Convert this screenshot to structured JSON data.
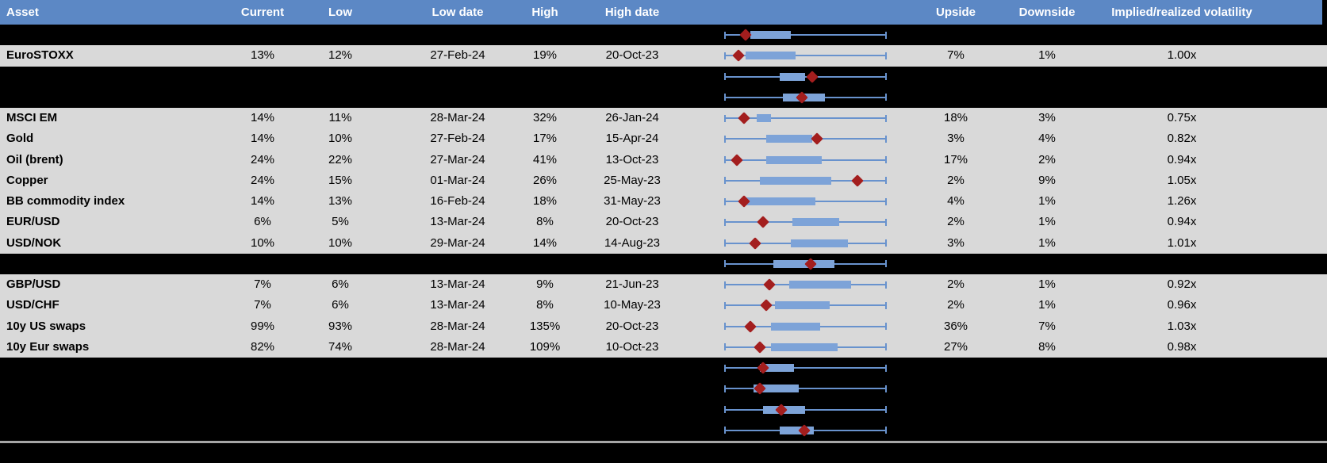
{
  "colors": {
    "header-bg": "#5c88c5",
    "header-text": "#ffffff",
    "row-bg": "#d9d9d9",
    "spacer-bg": "#000000",
    "box-fill": "#7da3d8",
    "whisker": "#6892cd",
    "marker": "#a31e1e",
    "divider": "#a6a6a6"
  },
  "chart_data": {
    "type": "table",
    "columns": [
      "Asset",
      "Current",
      "Low",
      "Low date",
      "High",
      "High date",
      "",
      "Upside",
      "Downside",
      "Implied/realized volatility"
    ],
    "range_plot_note": "Each row has a box-and-whisker range plot with a dark-red diamond marker; box and marker values are normalized where 0 = left whisker end and 1 = right whisker end",
    "rows": [
      {
        "kind": "spacer",
        "box": [
          0.16,
          0.41
        ],
        "marker": 0.13
      },
      {
        "kind": "data",
        "asset": "EuroSTOXX",
        "current": "13%",
        "low": "12%",
        "low_date": "27-Feb-24",
        "high": "19%",
        "high_date": "20-Oct-23",
        "upside": "7%",
        "downside": "1%",
        "implied_realized": "1.00x",
        "box": [
          0.13,
          0.44
        ],
        "marker": 0.09
      },
      {
        "kind": "spacer",
        "box": [
          0.34,
          0.5
        ],
        "marker": 0.54
      },
      {
        "kind": "spacer",
        "box": [
          0.36,
          0.62
        ],
        "marker": 0.48
      },
      {
        "kind": "data",
        "asset": "MSCI EM",
        "current": "14%",
        "low": "11%",
        "low_date": "28-Mar-24",
        "high": "32%",
        "high_date": "26-Jan-24",
        "upside": "18%",
        "downside": "3%",
        "implied_realized": "0.75x",
        "box": [
          0.2,
          0.29
        ],
        "marker": 0.12
      },
      {
        "kind": "data",
        "asset": "Gold",
        "current": "14%",
        "low": "10%",
        "low_date": "27-Feb-24",
        "high": "17%",
        "high_date": "15-Apr-24",
        "upside": "3%",
        "downside": "4%",
        "implied_realized": "0.82x",
        "box": [
          0.26,
          0.54
        ],
        "marker": 0.57
      },
      {
        "kind": "data",
        "asset": "Oil (brent)",
        "current": "24%",
        "low": "22%",
        "low_date": "27-Mar-24",
        "high": "41%",
        "high_date": "13-Oct-23",
        "upside": "17%",
        "downside": "2%",
        "implied_realized": "0.94x",
        "box": [
          0.26,
          0.6
        ],
        "marker": 0.08
      },
      {
        "kind": "data",
        "asset": "Copper",
        "current": "24%",
        "low": "15%",
        "low_date": "01-Mar-24",
        "high": "26%",
        "high_date": "25-May-23",
        "upside": "2%",
        "downside": "9%",
        "implied_realized": "1.05x",
        "box": [
          0.22,
          0.66
        ],
        "marker": 0.82
      },
      {
        "kind": "data",
        "asset": "BB commodity index",
        "current": "14%",
        "low": "13%",
        "low_date": "16-Feb-24",
        "high": "18%",
        "high_date": "31-May-23",
        "upside": "4%",
        "downside": "1%",
        "implied_realized": "1.26x",
        "box": [
          0.12,
          0.56
        ],
        "marker": 0.12
      },
      {
        "kind": "data",
        "asset": "EUR/USD",
        "current": "6%",
        "low": "5%",
        "low_date": "13-Mar-24",
        "high": "8%",
        "high_date": "20-Oct-23",
        "upside": "2%",
        "downside": "1%",
        "implied_realized": "0.94x",
        "box": [
          0.42,
          0.71
        ],
        "marker": 0.24
      },
      {
        "kind": "data",
        "asset": "USD/NOK",
        "current": "10%",
        "low": "10%",
        "low_date": "29-Mar-24",
        "high": "14%",
        "high_date": "14-Aug-23",
        "upside": "3%",
        "downside": "1%",
        "implied_realized": "1.01x",
        "box": [
          0.41,
          0.76
        ],
        "marker": 0.19
      },
      {
        "kind": "spacer",
        "box": [
          0.3,
          0.68
        ],
        "marker": 0.53
      },
      {
        "kind": "data",
        "asset": "GBP/USD",
        "current": "7%",
        "low": "6%",
        "low_date": "13-Mar-24",
        "high": "9%",
        "high_date": "21-Jun-23",
        "upside": "2%",
        "downside": "1%",
        "implied_realized": "0.92x",
        "box": [
          0.4,
          0.78
        ],
        "marker": 0.28
      },
      {
        "kind": "data",
        "asset": "USD/CHF",
        "current": "7%",
        "low": "6%",
        "low_date": "13-Mar-24",
        "high": "8%",
        "high_date": "10-May-23",
        "upside": "2%",
        "downside": "1%",
        "implied_realized": "0.96x",
        "box": [
          0.31,
          0.65
        ],
        "marker": 0.26
      },
      {
        "kind": "data",
        "asset": "10y US swaps",
        "current": "99%",
        "low": "93%",
        "low_date": "28-Mar-24",
        "high": "135%",
        "high_date": "20-Oct-23",
        "upside": "36%",
        "downside": "7%",
        "implied_realized": "1.03x",
        "box": [
          0.29,
          0.59
        ],
        "marker": 0.16
      },
      {
        "kind": "data",
        "asset": "10y Eur swaps",
        "current": "82%",
        "low": "74%",
        "low_date": "28-Mar-24",
        "high": "109%",
        "high_date": "10-Oct-23",
        "upside": "27%",
        "downside": "8%",
        "implied_realized": "0.98x",
        "box": [
          0.29,
          0.7
        ],
        "marker": 0.22
      },
      {
        "kind": "spacer",
        "box": [
          0.22,
          0.43
        ],
        "marker": 0.24
      },
      {
        "kind": "spacer",
        "box": [
          0.18,
          0.46
        ],
        "marker": 0.22
      },
      {
        "kind": "spacer",
        "box": [
          0.24,
          0.5
        ],
        "marker": 0.35
      },
      {
        "kind": "spacer",
        "box": [
          0.34,
          0.55
        ],
        "marker": 0.49
      }
    ]
  }
}
